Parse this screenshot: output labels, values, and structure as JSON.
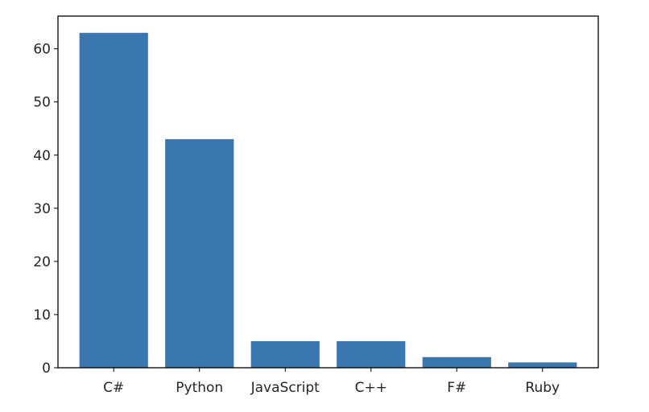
{
  "chart_data": {
    "type": "bar",
    "categories": [
      "C#",
      "Python",
      "JavaScript",
      "C++",
      "F#",
      "Ruby"
    ],
    "values": [
      63,
      43,
      5,
      5,
      2,
      1
    ],
    "title": "",
    "xlabel": "",
    "ylabel": "",
    "ylim": [
      0,
      66.15
    ],
    "yticks": [
      0,
      10,
      20,
      30,
      40,
      50,
      60
    ],
    "grid": false,
    "bar_color": "#3a76af"
  }
}
